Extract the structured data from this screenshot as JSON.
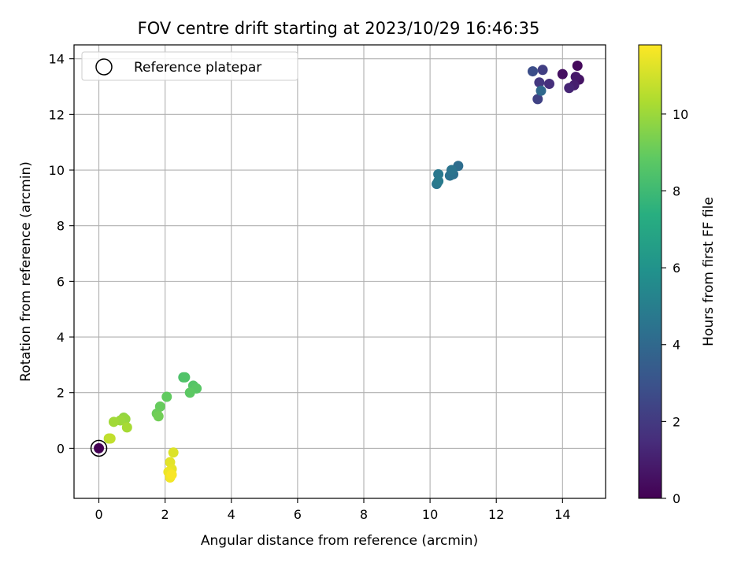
{
  "chart_data": {
    "type": "scatter",
    "title": "FOV centre drift starting at 2023/10/29 16:46:35",
    "xlabel": "Angular distance from reference (arcmin)",
    "ylabel": "Rotation from reference (arcmin)",
    "xlim": [
      -0.75,
      15.3
    ],
    "ylim": [
      -1.8,
      14.5
    ],
    "xticks": [
      0,
      2,
      4,
      6,
      8,
      10,
      12,
      14
    ],
    "yticks": [
      0,
      2,
      4,
      6,
      8,
      10,
      12,
      14
    ],
    "grid": true,
    "legend": {
      "placement": "top-left",
      "entries": [
        "Reference platepar"
      ]
    },
    "reference_point": {
      "x": 0,
      "y": 0
    },
    "colorbar": {
      "label": "Hours from first FF file",
      "min": 0,
      "max": 11.8,
      "ticks": [
        0,
        2,
        4,
        6,
        8,
        10
      ],
      "colormap": "viridis"
    },
    "points": [
      {
        "x": 0.0,
        "y": 0.0,
        "c": 0.0
      },
      {
        "x": 14.45,
        "y": 13.75,
        "c": 0.3
      },
      {
        "x": 14.0,
        "y": 13.45,
        "c": 0.5
      },
      {
        "x": 14.5,
        "y": 13.25,
        "c": 0.6
      },
      {
        "x": 14.4,
        "y": 13.35,
        "c": 0.8
      },
      {
        "x": 14.35,
        "y": 13.05,
        "c": 1.0
      },
      {
        "x": 14.2,
        "y": 12.95,
        "c": 1.2
      },
      {
        "x": 13.6,
        "y": 13.1,
        "c": 1.6
      },
      {
        "x": 13.3,
        "y": 13.15,
        "c": 1.9
      },
      {
        "x": 13.4,
        "y": 13.6,
        "c": 2.2
      },
      {
        "x": 13.25,
        "y": 12.55,
        "c": 2.3
      },
      {
        "x": 13.1,
        "y": 13.55,
        "c": 2.8
      },
      {
        "x": 13.35,
        "y": 12.85,
        "c": 4.0
      },
      {
        "x": 10.85,
        "y": 10.15,
        "c": 4.2
      },
      {
        "x": 10.7,
        "y": 9.85,
        "c": 4.3
      },
      {
        "x": 10.6,
        "y": 9.8,
        "c": 4.4
      },
      {
        "x": 10.65,
        "y": 10.0,
        "c": 4.5
      },
      {
        "x": 10.2,
        "y": 9.5,
        "c": 4.6
      },
      {
        "x": 10.25,
        "y": 9.85,
        "c": 4.7
      },
      {
        "x": 10.25,
        "y": 9.6,
        "c": 4.8
      },
      {
        "x": 2.55,
        "y": 2.55,
        "c": 8.4
      },
      {
        "x": 2.6,
        "y": 2.55,
        "c": 8.5
      },
      {
        "x": 2.85,
        "y": 2.25,
        "c": 8.6
      },
      {
        "x": 2.95,
        "y": 2.15,
        "c": 8.7
      },
      {
        "x": 2.75,
        "y": 2.0,
        "c": 8.8
      },
      {
        "x": 2.05,
        "y": 1.85,
        "c": 8.9
      },
      {
        "x": 1.85,
        "y": 1.5,
        "c": 9.0
      },
      {
        "x": 1.75,
        "y": 1.25,
        "c": 9.1
      },
      {
        "x": 1.8,
        "y": 1.15,
        "c": 9.2
      },
      {
        "x": 0.75,
        "y": 1.1,
        "c": 9.8
      },
      {
        "x": 0.8,
        "y": 1.05,
        "c": 9.9
      },
      {
        "x": 0.65,
        "y": 1.0,
        "c": 10.0
      },
      {
        "x": 0.45,
        "y": 0.95,
        "c": 10.1
      },
      {
        "x": 0.85,
        "y": 0.75,
        "c": 10.2
      },
      {
        "x": 0.3,
        "y": 0.35,
        "c": 10.6
      },
      {
        "x": 0.35,
        "y": 0.35,
        "c": 10.7
      },
      {
        "x": 2.25,
        "y": -0.15,
        "c": 11.2
      },
      {
        "x": 2.15,
        "y": -0.5,
        "c": 11.3
      },
      {
        "x": 2.2,
        "y": -0.75,
        "c": 11.4
      },
      {
        "x": 2.1,
        "y": -0.85,
        "c": 11.5
      },
      {
        "x": 2.15,
        "y": -1.05,
        "c": 11.6
      },
      {
        "x": 2.2,
        "y": -0.95,
        "c": 11.7
      }
    ]
  }
}
